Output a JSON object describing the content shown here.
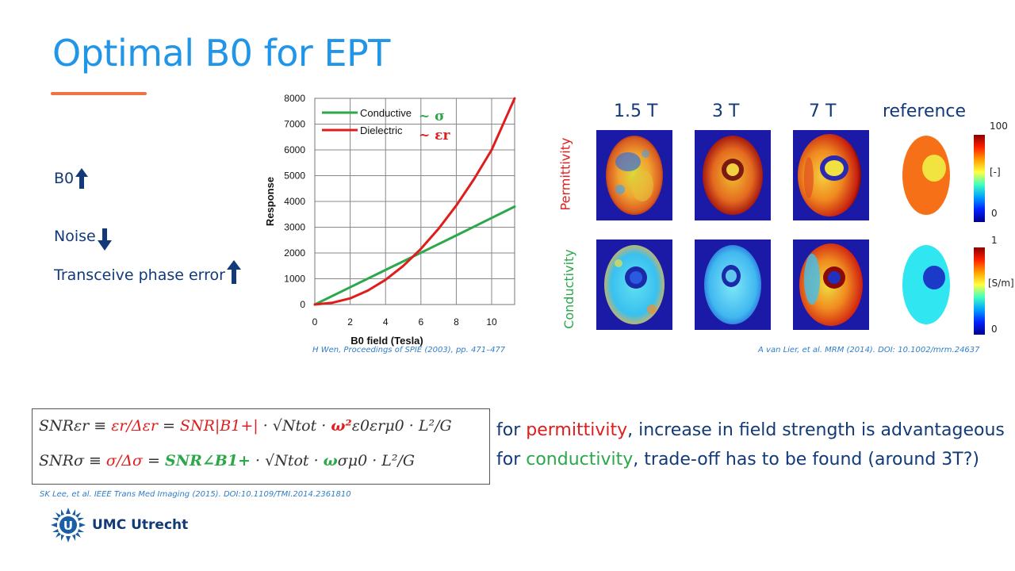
{
  "slide": {
    "title": "Optimal B0 for EPT",
    "bullets": [
      {
        "label": "B0",
        "arrow": "up"
      },
      {
        "label": "Noise",
        "arrow": "down"
      },
      {
        "label": "Transceive phase error",
        "arrow": "up"
      }
    ],
    "chart_citation": "H Wen, Proceedings of SPIE (2003), pp. 471–477",
    "images_citation": "A van Lier, et al. MRM (2014). DOI: 10.1002/mrm.24637",
    "formula_citation": "SK Lee, et al. IEEE Trans Med Imaging (2015). DOI:10.1109/TMI.2014.2361810",
    "logo_text": "UMC Utrecht"
  },
  "chart_data": {
    "type": "line",
    "xlabel": "B0 field (Tesla)",
    "ylabel": "Response",
    "xlim": [
      0,
      11.3
    ],
    "ylim": [
      0,
      8000
    ],
    "xticks": [
      "0",
      "2",
      "4",
      "6",
      "8",
      "10"
    ],
    "yticks": [
      "0",
      "1000",
      "2000",
      "3000",
      "4000",
      "5000",
      "6000",
      "7000",
      "8000"
    ],
    "series": [
      {
        "name": "Conductive",
        "symbol": "~ σ",
        "color": "#2aa84a",
        "x": [
          0,
          2,
          4,
          6,
          8,
          10,
          11.3
        ],
        "y": [
          0,
          670,
          1340,
          2010,
          2680,
          3360,
          3800
        ]
      },
      {
        "name": "Dielectric",
        "symbol": "~ εr",
        "color": "#e01d1d",
        "x": [
          0,
          1,
          2,
          3,
          4,
          5,
          6,
          7,
          8,
          9,
          10,
          11.3
        ],
        "y": [
          0,
          70,
          240,
          540,
          960,
          1500,
          2160,
          2940,
          3840,
          4860,
          6000,
          8000
        ]
      }
    ]
  },
  "figure": {
    "columns": [
      "1.5 T",
      "3 T",
      "7 T",
      "reference"
    ],
    "rows": [
      {
        "label": "Permittivity",
        "color": "#e01d1d",
        "scale_max": "100",
        "scale_unit": "[-]",
        "scale_min": "0"
      },
      {
        "label": "Conductivity",
        "color": "#2aa84a",
        "scale_max": "1",
        "scale_unit": "[S/m]",
        "scale_min": "0"
      }
    ]
  },
  "formulas": {
    "line1": {
      "lhs": "SNRεr ≡ ",
      "ratio": "εr/Δεr",
      "eq": " = ",
      "snr_b1": "SNR|B1+|",
      "rest1": " · √Ntot · ",
      "omega": "ω²",
      "rest2": "ε0εrμ0 · L²/G"
    },
    "line2": {
      "lhs": "SNRσ ≡ ",
      "ratio": "σ/Δσ",
      "eq": "  = ",
      "snr_b1": "SNR∠B1+",
      "rest1": " · √Ntot · ",
      "omega": "ω",
      "rest2": "σμ0 · L²/G"
    }
  },
  "notes": {
    "line1_prefix": "for ",
    "line1_key": "permittivity",
    "line1_suffix": ", increase in field strength is advantageous",
    "line2_prefix": "for ",
    "line2_key": "conductivity",
    "line2_suffix": ", trade-off has to be found (around 3T?)"
  }
}
